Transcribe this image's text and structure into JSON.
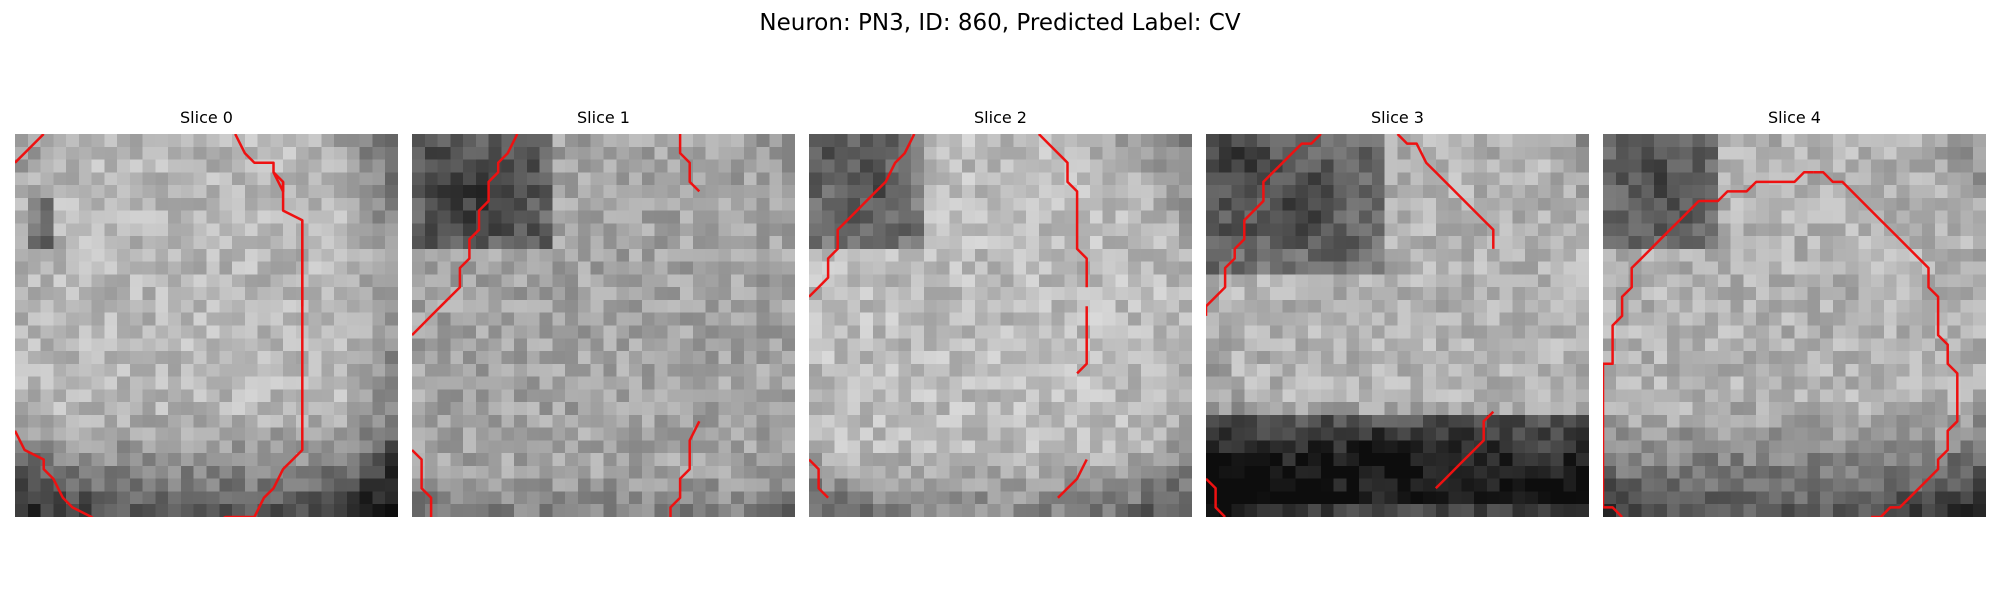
{
  "figure": {
    "title": "Neuron: PN3, ID: 860, Predicted Label: CV"
  },
  "colors": {
    "contour": "#ee1111",
    "background": "#ffffff"
  },
  "grid_size": 30,
  "panels": [
    {
      "title": "Slice 0",
      "shading": {
        "base": 0.72,
        "cell": [
          0.48,
          0.45,
          0.5
        ],
        "dark": [
          [
            0.05,
            0.18,
            0.1,
            0.3
          ]
        ],
        "bottom_dark": 0.28,
        "right_dark": 0.15
      },
      "contours": [
        [
          [
            3,
            0
          ],
          [
            1,
            2
          ],
          [
            0,
            3
          ]
        ],
        [
          [
            23,
            0
          ],
          [
            24,
            2
          ],
          [
            25,
            3
          ],
          [
            27,
            3
          ],
          [
            27,
            4
          ],
          [
            28,
            5
          ],
          [
            28,
            6
          ],
          [
            27,
            4
          ]
        ],
        [
          [
            28,
            5
          ],
          [
            28,
            8
          ],
          [
            30,
            9
          ],
          [
            30,
            33
          ],
          [
            28,
            35
          ],
          [
            27,
            37
          ],
          [
            26,
            38
          ],
          [
            25,
            40
          ],
          [
            22,
            40
          ],
          [
            20,
            41
          ],
          [
            15,
            41
          ],
          [
            9,
            41
          ],
          [
            8,
            40
          ],
          [
            6,
            39
          ],
          [
            5,
            38
          ],
          [
            4,
            36
          ],
          [
            3,
            35
          ],
          [
            3,
            34
          ],
          [
            1,
            33
          ],
          [
            0,
            31
          ]
        ],
        [
          [
            30,
            9
          ],
          [
            30,
            18
          ]
        ]
      ]
    },
    {
      "title": "Slice 1",
      "shading": {
        "base": 0.64,
        "cell": [
          0.5,
          0.5,
          0.6
        ],
        "dark": [
          [
            0.0,
            0.0,
            0.35,
            0.3
          ]
        ],
        "bottom_dark": 0.12,
        "right_dark": 0.0
      },
      "contours": [
        [
          [
            11,
            0
          ],
          [
            10,
            2
          ],
          [
            9,
            3
          ],
          [
            9,
            4
          ],
          [
            8,
            5
          ],
          [
            8,
            7
          ],
          [
            7,
            8
          ],
          [
            7,
            10
          ],
          [
            6,
            11
          ],
          [
            6,
            13
          ],
          [
            5,
            14
          ],
          [
            5,
            16
          ],
          [
            4,
            17
          ],
          [
            3,
            18
          ],
          [
            2,
            19
          ],
          [
            1,
            20
          ],
          [
            0,
            21
          ]
        ],
        [
          [
            28,
            0
          ],
          [
            28,
            2
          ],
          [
            29,
            3
          ],
          [
            29,
            5
          ],
          [
            30,
            6
          ]
        ],
        [
          [
            0,
            33
          ],
          [
            1,
            34
          ],
          [
            1,
            37
          ],
          [
            2,
            38
          ],
          [
            2,
            40
          ]
        ],
        [
          [
            30,
            30
          ],
          [
            29,
            32
          ],
          [
            29,
            35
          ],
          [
            28,
            36
          ],
          [
            28,
            38
          ],
          [
            27,
            39
          ],
          [
            27,
            40
          ]
        ]
      ]
    },
    {
      "title": "Slice 2",
      "shading": {
        "base": 0.74,
        "cell": [
          0.45,
          0.5,
          0.5
        ],
        "dark": [
          [
            0.0,
            0.0,
            0.3,
            0.3
          ]
        ],
        "bottom_dark": 0.18,
        "right_dark": 0.0
      },
      "contours": [
        [
          [
            11,
            0
          ],
          [
            10,
            2
          ],
          [
            9,
            3
          ],
          [
            8,
            5
          ],
          [
            7,
            6
          ],
          [
            6,
            7
          ],
          [
            5,
            8
          ],
          [
            4,
            9
          ],
          [
            3,
            10
          ],
          [
            3,
            12
          ],
          [
            2,
            13
          ],
          [
            2,
            15
          ],
          [
            1,
            16
          ],
          [
            0,
            17
          ]
        ],
        [
          [
            24,
            0
          ],
          [
            25,
            1
          ],
          [
            26,
            2
          ],
          [
            27,
            3
          ],
          [
            27,
            5
          ],
          [
            28,
            6
          ],
          [
            28,
            12
          ],
          [
            29,
            13
          ],
          [
            29,
            16
          ]
        ],
        [
          [
            29,
            18
          ],
          [
            29,
            24
          ],
          [
            28,
            25
          ]
        ],
        [
          [
            0,
            34
          ],
          [
            1,
            35
          ],
          [
            1,
            37
          ],
          [
            2,
            38
          ]
        ],
        [
          [
            29,
            34
          ],
          [
            28,
            36
          ],
          [
            27,
            37
          ],
          [
            26,
            38
          ]
        ]
      ]
    },
    {
      "title": "Slice 3",
      "shading": {
        "base": 0.7,
        "cell": [
          0.55,
          0.45,
          0.5
        ],
        "dark": [
          [
            0.0,
            0.0,
            0.45,
            0.35
          ],
          [
            0.0,
            0.72,
            1.0,
            0.95
          ]
        ],
        "bottom_dark": 0.32,
        "right_dark": 0.0
      },
      "contours": [
        [
          [
            12,
            0
          ],
          [
            11,
            1
          ],
          [
            10,
            1
          ],
          [
            9,
            2
          ],
          [
            8,
            3
          ],
          [
            7,
            4
          ],
          [
            6,
            5
          ],
          [
            6,
            7
          ],
          [
            5,
            8
          ],
          [
            4,
            9
          ],
          [
            4,
            11
          ],
          [
            3,
            12
          ],
          [
            3,
            13
          ],
          [
            2,
            14
          ],
          [
            2,
            16
          ],
          [
            1,
            17
          ],
          [
            0,
            18
          ],
          [
            0,
            19
          ]
        ],
        [
          [
            20,
            0
          ],
          [
            21,
            1
          ],
          [
            22,
            1
          ],
          [
            23,
            3
          ],
          [
            24,
            4
          ],
          [
            25,
            5
          ],
          [
            26,
            6
          ],
          [
            27,
            7
          ],
          [
            28,
            8
          ],
          [
            29,
            9
          ],
          [
            30,
            10
          ],
          [
            30,
            12
          ]
        ],
        [
          [
            0,
            36
          ],
          [
            1,
            37
          ],
          [
            1,
            39
          ],
          [
            2,
            40
          ]
        ],
        [
          [
            30,
            29
          ],
          [
            29,
            30
          ],
          [
            29,
            32
          ],
          [
            28,
            33
          ],
          [
            27,
            34
          ],
          [
            26,
            35
          ],
          [
            25,
            36
          ],
          [
            24,
            37
          ]
        ]
      ]
    },
    {
      "title": "Slice 4",
      "shading": {
        "base": 0.7,
        "cell": [
          0.45,
          0.45,
          0.55
        ],
        "dark": [
          [
            0.0,
            0.0,
            0.3,
            0.3
          ]
        ],
        "bottom_dark": 0.3,
        "right_dark": 0.0
      },
      "contours": [
        [
          [
            22,
            4
          ],
          [
            21,
            4
          ],
          [
            20,
            5
          ],
          [
            19,
            5
          ],
          [
            16,
            5
          ],
          [
            15,
            6
          ],
          [
            13,
            6
          ],
          [
            12,
            7
          ],
          [
            10,
            7
          ],
          [
            9,
            8
          ],
          [
            8,
            9
          ],
          [
            7,
            10
          ],
          [
            6,
            11
          ],
          [
            5,
            12
          ],
          [
            4,
            13
          ],
          [
            3,
            14
          ],
          [
            3,
            16
          ],
          [
            2,
            17
          ],
          [
            2,
            19
          ],
          [
            1,
            20
          ],
          [
            1,
            24
          ],
          [
            0,
            24
          ],
          [
            0,
            30
          ],
          [
            0,
            39
          ],
          [
            1,
            39
          ],
          [
            2,
            40
          ]
        ],
        [
          [
            22,
            4
          ],
          [
            23,
            4
          ],
          [
            24,
            5
          ],
          [
            25,
            5
          ],
          [
            26,
            6
          ],
          [
            27,
            7
          ],
          [
            28,
            8
          ],
          [
            29,
            9
          ],
          [
            30,
            10
          ],
          [
            31,
            11
          ],
          [
            32,
            12
          ],
          [
            33,
            13
          ],
          [
            34,
            14
          ],
          [
            34,
            16
          ],
          [
            35,
            17
          ],
          [
            35,
            21
          ],
          [
            36,
            22
          ],
          [
            36,
            24
          ],
          [
            37,
            25
          ],
          [
            37,
            30
          ],
          [
            36,
            31
          ],
          [
            36,
            33
          ],
          [
            35,
            34
          ],
          [
            35,
            35
          ],
          [
            34,
            36
          ],
          [
            33,
            37
          ],
          [
            32,
            38
          ],
          [
            31,
            39
          ],
          [
            30,
            39
          ],
          [
            29,
            40
          ],
          [
            28,
            40
          ]
        ]
      ]
    }
  ]
}
